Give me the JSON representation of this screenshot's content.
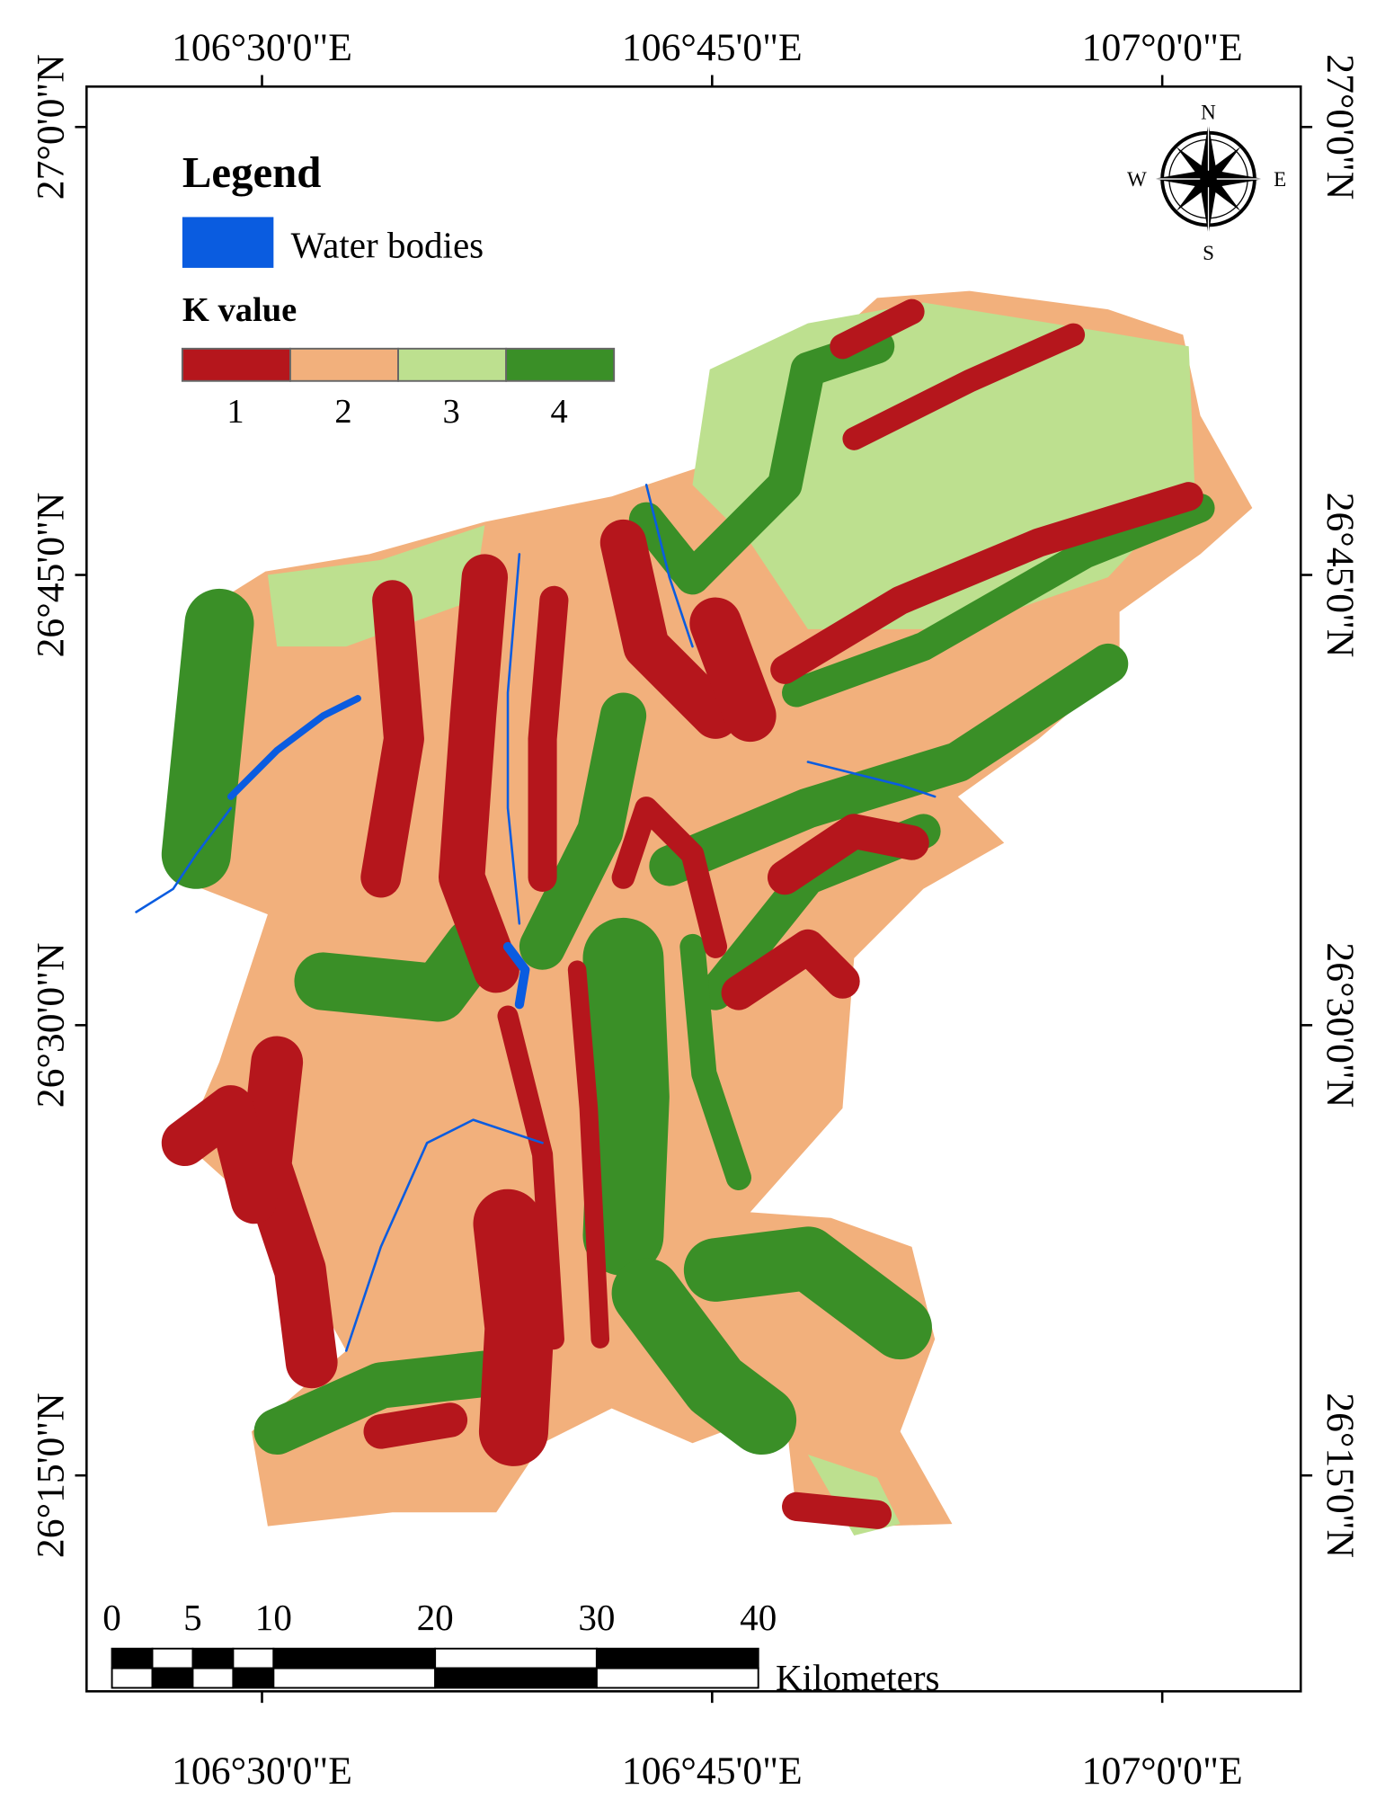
{
  "map": {
    "top_labels": [
      "106°30'0\"E",
      "106°45'0\"E",
      "107°0'0\"E"
    ],
    "bottom_labels": [
      "106°30'0\"E",
      "106°45'0\"E",
      "107°0'0\"E"
    ],
    "left_labels": [
      "27°0'0\"N",
      "26°45'0\"N",
      "26°30'0\"N",
      "26°15'0\"N"
    ],
    "right_labels": [
      "27°0'0\"N",
      "26°45'0\"N",
      "26°30'0\"N",
      "26°15'0\"N"
    ],
    "legend": {
      "title": "Legend",
      "water": "Water bodies",
      "k_title": "K value",
      "classes": [
        {
          "label": "1",
          "color": "#b5161c"
        },
        {
          "label": "2",
          "color": "#f2b07c"
        },
        {
          "label": "3",
          "color": "#bde08f"
        },
        {
          "label": "4",
          "color": "#3a8f27"
        }
      ]
    },
    "compass": {
      "n": "N",
      "s": "S",
      "w": "W",
      "e": "E"
    },
    "scale_bar": {
      "labels": [
        "0",
        "5",
        "10",
        "20",
        "30",
        "40"
      ],
      "unit": "Kilometers"
    }
  }
}
